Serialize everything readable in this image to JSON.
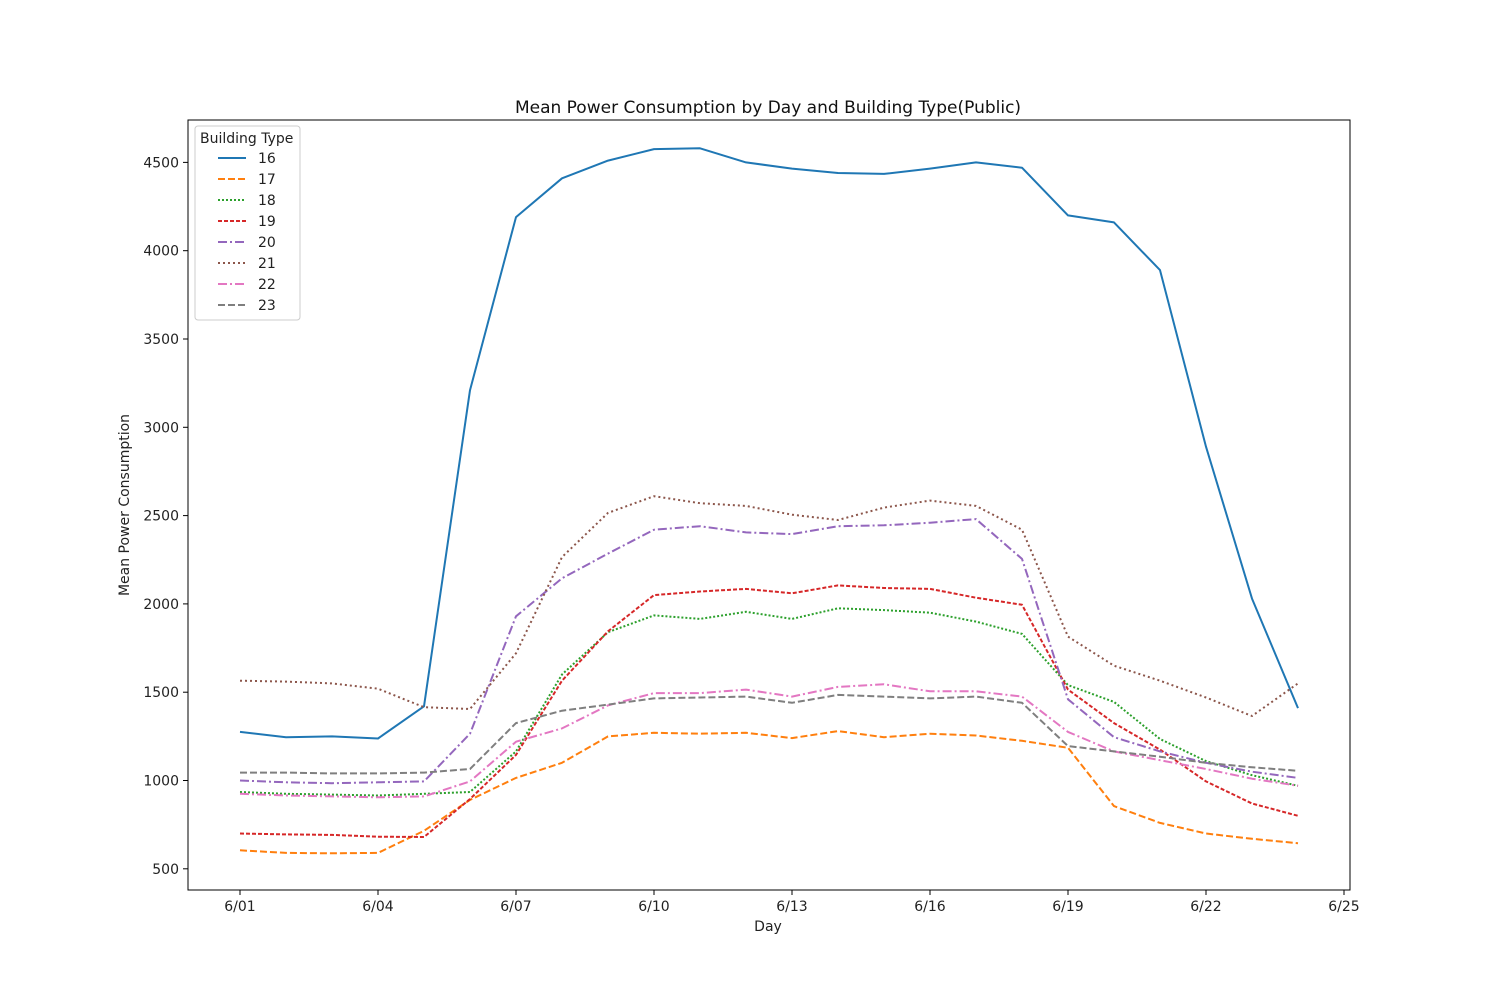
{
  "chart_data": {
    "type": "line",
    "title": "Mean Power Consumption by Day and Building Type(Public)",
    "xlabel": "Day",
    "ylabel": "Mean Power Consumption",
    "x": [
      "6/01",
      "6/02",
      "6/03",
      "6/04",
      "6/05",
      "6/06",
      "6/07",
      "6/08",
      "6/09",
      "6/10",
      "6/11",
      "6/12",
      "6/13",
      "6/14",
      "6/15",
      "6/16",
      "6/17",
      "6/18",
      "6/19",
      "6/20",
      "6/21",
      "6/22",
      "6/23",
      "6/24"
    ],
    "xticks": [
      "6/01",
      "6/04",
      "6/07",
      "6/10",
      "6/13",
      "6/16",
      "6/19",
      "6/22",
      "6/25"
    ],
    "xlim": [
      "5/31",
      "6/25"
    ],
    "yticks": [
      500,
      1000,
      1500,
      2000,
      2500,
      3000,
      3500,
      4000,
      4500
    ],
    "ylim": [
      380,
      4740
    ],
    "grid": false,
    "legend": {
      "title": "Building Type",
      "position": "top-left"
    },
    "series": [
      {
        "name": "16",
        "color": "#1f77b4",
        "dash": "",
        "values": [
          1275,
          1245,
          1250,
          1238,
          1420,
          3210,
          4190,
          4410,
          4510,
          4575,
          4580,
          4500,
          4465,
          4440,
          4435,
          4465,
          4500,
          4470,
          4200,
          4160,
          3890,
          2890,
          2030,
          1410
        ]
      },
      {
        "name": "17",
        "color": "#ff7f0e",
        "dash": "7,3",
        "values": [
          605,
          590,
          588,
          590,
          715,
          890,
          1015,
          1100,
          1250,
          1270,
          1265,
          1270,
          1240,
          1280,
          1245,
          1265,
          1255,
          1225,
          1185,
          855,
          760,
          700,
          670,
          645
        ]
      },
      {
        "name": "18",
        "color": "#2ca02c",
        "dash": "2,2",
        "values": [
          935,
          925,
          920,
          915,
          925,
          935,
          1165,
          1600,
          1840,
          1935,
          1915,
          1955,
          1915,
          1975,
          1965,
          1950,
          1900,
          1830,
          1540,
          1445,
          1235,
          1110,
          1030,
          970
        ]
      },
      {
        "name": "19",
        "color": "#d62728",
        "dash": "4,2",
        "values": [
          700,
          695,
          692,
          682,
          680,
          895,
          1145,
          1565,
          1845,
          2050,
          2070,
          2085,
          2060,
          2105,
          2090,
          2085,
          2035,
          1995,
          1515,
          1325,
          1175,
          995,
          870,
          800
        ]
      },
      {
        "name": "20",
        "color": "#9467bd",
        "dash": "9,3,2,3",
        "values": [
          1000,
          990,
          985,
          990,
          995,
          1265,
          1930,
          2145,
          2285,
          2420,
          2440,
          2405,
          2395,
          2440,
          2445,
          2460,
          2480,
          2255,
          1460,
          1245,
          1165,
          1100,
          1050,
          1015
        ]
      },
      {
        "name": "21",
        "color": "#8c564b",
        "dash": "2,3",
        "values": [
          1565,
          1560,
          1550,
          1520,
          1415,
          1405,
          1720,
          2265,
          2515,
          2610,
          2570,
          2555,
          2505,
          2475,
          2545,
          2585,
          2555,
          2420,
          1815,
          1650,
          1565,
          1470,
          1365,
          1550
        ]
      },
      {
        "name": "22",
        "color": "#e377c2",
        "dash": "9,3,2,3",
        "values": [
          925,
          915,
          910,
          905,
          910,
          995,
          1220,
          1295,
          1425,
          1495,
          1495,
          1515,
          1475,
          1530,
          1545,
          1505,
          1505,
          1475,
          1275,
          1165,
          1115,
          1065,
          1010,
          970
        ]
      },
      {
        "name": "23",
        "color": "#7f7f7f",
        "dash": "7,3",
        "values": [
          1045,
          1045,
          1040,
          1040,
          1045,
          1065,
          1325,
          1395,
          1430,
          1465,
          1470,
          1475,
          1440,
          1485,
          1475,
          1465,
          1475,
          1440,
          1195,
          1165,
          1135,
          1100,
          1075,
          1055
        ]
      }
    ]
  }
}
